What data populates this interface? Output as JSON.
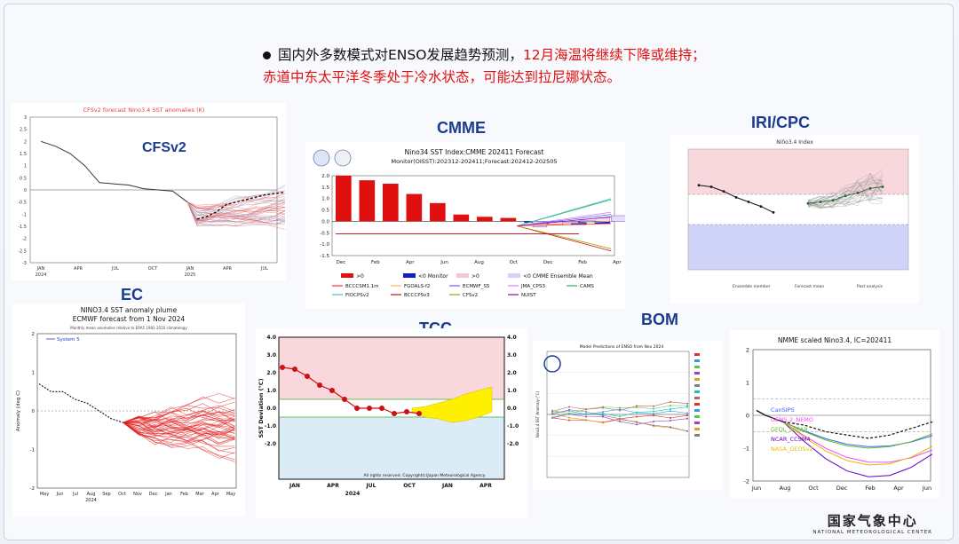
{
  "header": {
    "line1_black": "国内外多数模式对ENSO发展趋势预测，",
    "line1_red": "12月海温将继续下降或维持；",
    "line2_red": "赤道中东太平洋冬季处于冷水状态，可能达到拉尼娜状态。"
  },
  "logo": {
    "cn": "国家气象中心",
    "en": "NATIONAL METEOROLOGICAL CENTER"
  },
  "colors": {
    "red": "#e01010",
    "blue": "#1a3c8f"
  },
  "chart_data": [
    {
      "id": "cfsv2",
      "label": "CFSv2",
      "type": "line",
      "title": "CFSv2 forecast Nino3.4 SST anomalies (K)",
      "ylim": [
        -3,
        3
      ],
      "yticks": [
        "3",
        "2.5",
        "2",
        "1.5",
        "1",
        "0.5",
        "0",
        "-0.5",
        "-1",
        "-1.5",
        "-2",
        "-2.5",
        "-3"
      ],
      "xticks": [
        "JAN",
        "APR",
        "JUL",
        "OCT",
        "JAN",
        "APR",
        "JUL"
      ],
      "xyears": [
        "2024",
        "2025"
      ],
      "observed": [
        2.0,
        1.8,
        1.5,
        1.0,
        0.3,
        0.25,
        0.2,
        0.05,
        0.0,
        -0.05,
        -0.5
      ],
      "mean": [
        -1.2,
        -1.1,
        -0.9,
        -0.6,
        -0.5,
        -0.4,
        -0.3,
        -0.2,
        -0.15,
        -0.1
      ]
    },
    {
      "id": "cmme",
      "label": "CMME",
      "type": "bar",
      "title": "Nino34 SST Index:CMME 202411 Forecast",
      "subtitle": "Monitor(OISST):202312-202411;Forecast:202412-202505",
      "ylim": [
        -1.5,
        2.0
      ],
      "yticks": [
        "2.0",
        "1.5",
        "1.0",
        "0.5",
        "0.0",
        "-0.5",
        "-1.0",
        "-1.5"
      ],
      "categories": [
        "Dec",
        "Feb",
        "Apr",
        "Jun",
        "Aug",
        "Oct",
        "Dec",
        "Feb",
        "Apr"
      ],
      "monitor_values": [
        2.0,
        1.8,
        1.65,
        1.2,
        0.8,
        0.3,
        0.2,
        0.15,
        -0.05,
        -0.15,
        -0.15,
        -0.1
      ],
      "ensemble_mean": [
        -0.25,
        -0.15,
        -0.05,
        0.05,
        0.15,
        0.25
      ],
      "legend": [
        ">0",
        "<0 Monitor",
        ">0",
        "<0 CMME Ensemble Mean"
      ],
      "models": [
        "BCCCSM1.1m",
        "FGOALS-f2",
        "ECMWF_S5",
        "JMA_CPS3",
        "CAMS",
        "FIOCPSv2",
        "BCCCPSv3",
        "CFSv2",
        "NUIST"
      ],
      "model_colors": [
        "#ff3030",
        "#ffb060",
        "#6060ff",
        "#d080ff",
        "#30b060",
        "#40c0c0",
        "#d01010",
        "#a0a000",
        "#a000a0"
      ]
    },
    {
      "id": "iri",
      "label": "IRI/CPC",
      "type": "line",
      "title": "Niño3.4 Index",
      "ylim": [
        -2,
        2
      ],
      "observed": [
        0.8,
        0.75,
        0.6,
        0.4,
        0.25,
        0.1,
        -0.1
      ],
      "forecast": [
        0.2,
        0.25,
        0.3,
        0.45,
        0.55,
        0.7,
        0.75
      ],
      "legend": [
        "Ensemble member",
        "Forecast mean",
        "Past analysis"
      ]
    },
    {
      "id": "ec",
      "label": "EC",
      "type": "line",
      "title": "NINO3.4 SST anomaly plume",
      "subtitle": "ECMWF forecast from 1 Nov 2024",
      "note": "Monthly mean anomalies relative to ERA5 1981-2010 climatology",
      "legend": [
        "System 5"
      ],
      "ylabel": "Anomaly (deg C)",
      "ylim": [
        -2,
        2
      ],
      "yticks": [
        "2",
        "1",
        "0",
        "-1",
        "-2"
      ],
      "xticks": [
        "May",
        "Jun",
        "Jul",
        "Aug",
        "Sep",
        "Oct",
        "Nov",
        "Dec",
        "Jan",
        "Feb",
        "Mar",
        "Apr",
        "May"
      ],
      "xyear": "2024",
      "observed": [
        0.7,
        0.5,
        0.5,
        0.3,
        0.2,
        0.0,
        -0.2,
        -0.3
      ]
    },
    {
      "id": "tcc",
      "label": "TCC",
      "type": "line",
      "ylabel": "SST Deviation (°C)",
      "ylim": [
        -4,
        4
      ],
      "yticks": [
        "4.0",
        "3.0",
        "2.0",
        "1.0",
        "0.0",
        "-1.0",
        "-2.0"
      ],
      "xticks": [
        "JAN",
        "APR",
        "JUL",
        "OCT",
        "JAN",
        "APR"
      ],
      "xyear": "2024",
      "observed": [
        2.3,
        2.2,
        1.8,
        1.3,
        1.0,
        0.5,
        0.0,
        0.0,
        0.0,
        -0.3,
        -0.2,
        -0.3
      ],
      "forecast_range_low": [
        -0.2,
        -0.5,
        -0.6,
        -0.8,
        -0.7,
        -0.5,
        -0.2
      ],
      "forecast_range_high": [
        0.0,
        0.1,
        0.3,
        0.5,
        0.8,
        1.0,
        1.2
      ],
      "note": "All rights reserved. Copyright(c)Japan Meteorological Agency"
    },
    {
      "id": "bom",
      "label": "BOM",
      "type": "line",
      "title": "Model Predictions of ENSO from Nov 2024",
      "ylabel": "Nino3.4 SST Anomaly (°C)",
      "ylim": [
        -3,
        3
      ]
    },
    {
      "id": "nmme",
      "label": "",
      "type": "line",
      "title": "NMME scaled Nino3.4, IC=202411",
      "ylim": [
        -2,
        2
      ],
      "yticks": [
        "2",
        "1",
        "0",
        "-1",
        "-2"
      ],
      "xticks": [
        "Jun",
        "Aug",
        "Oct",
        "Dec",
        "Feb",
        "Apr",
        "Jun"
      ],
      "models": [
        "CanSIPS",
        "GEM5.2_NEMO",
        "GFDL_SPEAR",
        "NCAR_CCSM4",
        "NASA_GEOSv2"
      ],
      "model_colors": [
        "#4060ff",
        "#ff40ff",
        "#60c020",
        "#6000c0",
        "#e0c000"
      ],
      "observed": [
        0.15,
        0.0,
        -0.1,
        -0.2
      ],
      "ensemble_mean": [
        -0.3,
        -0.5,
        -0.6,
        -0.7,
        -0.6,
        -0.4,
        -0.2
      ]
    }
  ]
}
